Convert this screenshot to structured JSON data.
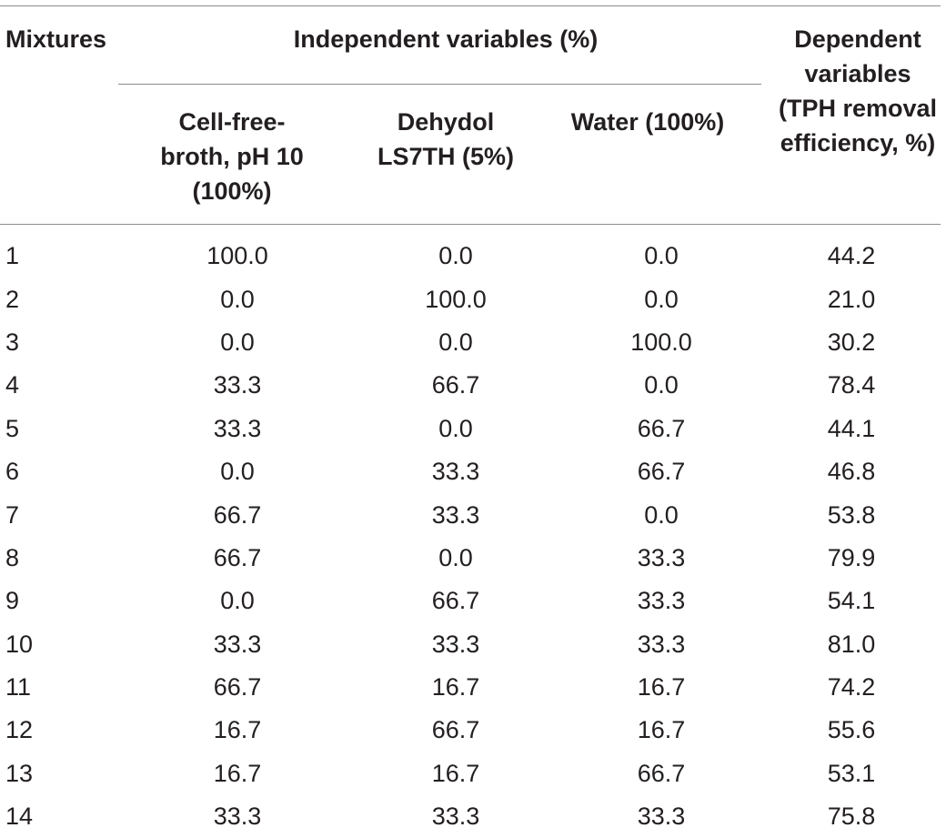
{
  "headers": {
    "mixtures": "Mixtures",
    "independent_group": "Independent variables (%)",
    "dependent": "Dependent\nvariables\n(TPH removal\nefficiency, %)",
    "cell_free": "Cell-free-\nbroth, pH 10\n(100%)",
    "dehydol": "Dehydol\nLS7TH (5%)",
    "water": "Water (100%)"
  },
  "rows": [
    [
      "1",
      "100.0",
      "0.0",
      "0.0",
      "44.2"
    ],
    [
      "2",
      "0.0",
      "100.0",
      "0.0",
      "21.0"
    ],
    [
      "3",
      "0.0",
      "0.0",
      "100.0",
      "30.2"
    ],
    [
      "4",
      "33.3",
      "66.7",
      "0.0",
      "78.4"
    ],
    [
      "5",
      "33.3",
      "0.0",
      "66.7",
      "44.1"
    ],
    [
      "6",
      "0.0",
      "33.3",
      "66.7",
      "46.8"
    ],
    [
      "7",
      "66.7",
      "33.3",
      "0.0",
      "53.8"
    ],
    [
      "8",
      "66.7",
      "0.0",
      "33.3",
      "79.9"
    ],
    [
      "9",
      "0.0",
      "66.7",
      "33.3",
      "54.1"
    ],
    [
      "10",
      "33.3",
      "33.3",
      "33.3",
      "81.0"
    ],
    [
      "11",
      "66.7",
      "16.7",
      "16.7",
      "74.2"
    ],
    [
      "12",
      "16.7",
      "66.7",
      "16.7",
      "55.6"
    ],
    [
      "13",
      "16.7",
      "16.7",
      "66.7",
      "53.1"
    ],
    [
      "14",
      "33.3",
      "33.3",
      "33.3",
      "75.8"
    ]
  ]
}
